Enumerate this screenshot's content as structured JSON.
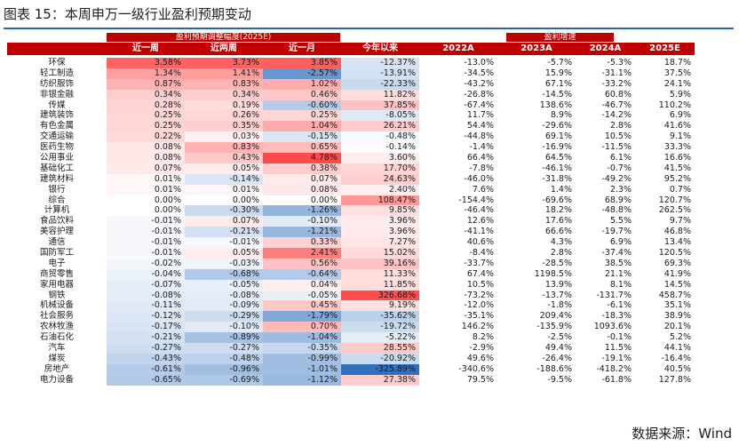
{
  "title": "图表 15：本周申万一级行业盈利预期变动",
  "header": {
    "group_left": "盈利预期调整幅度(2025E)",
    "group_right": "盈利增速",
    "columns": [
      "近一周",
      "近两周",
      "近一月",
      "今年以来",
      "2022A",
      "2023A",
      "2024A",
      "2025E"
    ]
  },
  "rows": [
    {
      "name": "环保",
      "w1": "3.58%",
      "w2": "3.73%",
      "m1": "3.85%",
      "ytd": "-12.37%",
      "y22": "-13.0%",
      "y23": "-5.7%",
      "y24": "-5.3%",
      "y25": "18.7%"
    },
    {
      "name": "轻工制造",
      "w1": "1.34%",
      "w2": "1.41%",
      "m1": "-2.57%",
      "ytd": "-13.91%",
      "y22": "-34.5%",
      "y23": "15.9%",
      "y24": "-31.1%",
      "y25": "37.5%"
    },
    {
      "name": "纺织服饰",
      "w1": "0.87%",
      "w2": "0.83%",
      "m1": "1.02%",
      "ytd": "-22.33%",
      "y22": "-43.2%",
      "y23": "67.1%",
      "y24": "-33.2%",
      "y25": "24.1%"
    },
    {
      "name": "非银金融",
      "w1": "0.34%",
      "w2": "0.34%",
      "m1": "0.46%",
      "ytd": "11.82%",
      "y22": "-26.8%",
      "y23": "-14.5%",
      "y24": "60.8%",
      "y25": "5.9%"
    },
    {
      "name": "传媒",
      "w1": "0.28%",
      "w2": "0.19%",
      "m1": "-0.60%",
      "ytd": "37.85%",
      "y22": "-67.4%",
      "y23": "138.6%",
      "y24": "-46.7%",
      "y25": "110.2%"
    },
    {
      "name": "建筑装饰",
      "w1": "0.25%",
      "w2": "0.26%",
      "m1": "0.25%",
      "ytd": "-8.05%",
      "y22": "11.7%",
      "y23": "8.9%",
      "y24": "-14.2%",
      "y25": "6.9%"
    },
    {
      "name": "有色金属",
      "w1": "0.25%",
      "w2": "0.35%",
      "m1": "1.04%",
      "ytd": "26.21%",
      "y22": "54.4%",
      "y23": "-29.6%",
      "y24": "2.8%",
      "y25": "41.6%"
    },
    {
      "name": "交通运输",
      "w1": "0.22%",
      "w2": "0.03%",
      "m1": "-0.15%",
      "ytd": "-0.48%",
      "y22": "-44.8%",
      "y23": "69.1%",
      "y24": "10.5%",
      "y25": "9.1%"
    },
    {
      "name": "医药生物",
      "w1": "0.08%",
      "w2": "0.83%",
      "m1": "0.65%",
      "ytd": "-0.14%",
      "y22": "-1.4%",
      "y23": "-16.9%",
      "y24": "-11.5%",
      "y25": "33.3%"
    },
    {
      "name": "公用事业",
      "w1": "0.08%",
      "w2": "0.43%",
      "m1": "4.78%",
      "ytd": "3.60%",
      "y22": "66.4%",
      "y23": "64.5%",
      "y24": "6.1%",
      "y25": "16.6%"
    },
    {
      "name": "基础化工",
      "w1": "0.07%",
      "w2": "0.05%",
      "m1": "0.38%",
      "ytd": "17.70%",
      "y22": "-7.8%",
      "y23": "-46.1%",
      "y24": "-0.7%",
      "y25": "41.5%"
    },
    {
      "name": "建筑材料",
      "w1": "0.01%",
      "w2": "-0.14%",
      "m1": "0.07%",
      "ytd": "24.63%",
      "y22": "-46.0%",
      "y23": "-31.8%",
      "y24": "-49.2%",
      "y25": "95.2%"
    },
    {
      "name": "银行",
      "w1": "0.01%",
      "w2": "0.01%",
      "m1": "0.08%",
      "ytd": "2.40%",
      "y22": "7.6%",
      "y23": "1.4%",
      "y24": "2.3%",
      "y25": "0.7%"
    },
    {
      "name": "综合",
      "w1": "0.00%",
      "w2": "0.00%",
      "m1": "0.00%",
      "ytd": "108.47%",
      "y22": "-154.4%",
      "y23": "-69.6%",
      "y24": "68.9%",
      "y25": "120.7%"
    },
    {
      "name": "计算机",
      "w1": "0.00%",
      "w2": "-0.30%",
      "m1": "-1.26%",
      "ytd": "9.85%",
      "y22": "-46.4%",
      "y23": "18.2%",
      "y24": "-48.8%",
      "y25": "262.5%"
    },
    {
      "name": "食品饮料",
      "w1": "-0.01%",
      "w2": "0.07%",
      "m1": "-0.10%",
      "ytd": "3.96%",
      "y22": "12.6%",
      "y23": "17.6%",
      "y24": "5.5%",
      "y25": "9.7%"
    },
    {
      "name": "美容护理",
      "w1": "-0.01%",
      "w2": "-0.21%",
      "m1": "-1.21%",
      "ytd": "3.96%",
      "y22": "-41.1%",
      "y23": "66.6%",
      "y24": "-19.7%",
      "y25": "46.8%"
    },
    {
      "name": "通信",
      "w1": "-0.01%",
      "w2": "-0.01%",
      "m1": "0.33%",
      "ytd": "7.27%",
      "y22": "40.6%",
      "y23": "4.3%",
      "y24": "6.9%",
      "y25": "13.4%"
    },
    {
      "name": "国防军工",
      "w1": "-0.01%",
      "w2": "0.05%",
      "m1": "2.41%",
      "ytd": "15.02%",
      "y22": "-8.4%",
      "y23": "2.8%",
      "y24": "-37.4%",
      "y25": "120.5%"
    },
    {
      "name": "电子",
      "w1": "-0.02%",
      "w2": "-0.03%",
      "m1": "0.56%",
      "ytd": "39.16%",
      "y22": "-33.7%",
      "y23": "-28.5%",
      "y24": "38.5%",
      "y25": "69.3%"
    },
    {
      "name": "商贸零售",
      "w1": "-0.04%",
      "w2": "-0.68%",
      "m1": "-0.64%",
      "ytd": "11.33%",
      "y22": "67.4%",
      "y23": "1198.5%",
      "y24": "21.1%",
      "y25": "41.9%"
    },
    {
      "name": "家用电器",
      "w1": "-0.07%",
      "w2": "-0.05%",
      "m1": "0.04%",
      "ytd": "11.85%",
      "y22": "10.5%",
      "y23": "13.9%",
      "y24": "8.1%",
      "y25": "14.5%"
    },
    {
      "name": "钢铁",
      "w1": "-0.08%",
      "w2": "-0.08%",
      "m1": "-0.05%",
      "ytd": "326.68%",
      "y22": "-73.2%",
      "y23": "-13.7%",
      "y24": "-131.7%",
      "y25": "458.7%"
    },
    {
      "name": "机械设备",
      "w1": "-0.11%",
      "w2": "-0.09%",
      "m1": "0.45%",
      "ytd": "9.19%",
      "y22": "-12.0%",
      "y23": "-1.8%",
      "y24": "-6.1%",
      "y25": "35.1%"
    },
    {
      "name": "社会服务",
      "w1": "-0.12%",
      "w2": "-0.29%",
      "m1": "-1.79%",
      "ytd": "-35.62%",
      "y22": "-35.1%",
      "y23": "209.4%",
      "y24": "-18.3%",
      "y25": "38.9%"
    },
    {
      "name": "农林牧渔",
      "w1": "-0.17%",
      "w2": "-0.10%",
      "m1": "0.70%",
      "ytd": "-19.72%",
      "y22": "146.2%",
      "y23": "-135.9%",
      "y24": "1093.6%",
      "y25": "20.1%"
    },
    {
      "name": "石油石化",
      "w1": "-0.21%",
      "w2": "-0.89%",
      "m1": "-1.04%",
      "ytd": "-5.22%",
      "y22": "8.2%",
      "y23": "-2.5%",
      "y24": "-0.1%",
      "y25": "5.2%"
    },
    {
      "name": "汽车",
      "w1": "-0.27%",
      "w2": "-0.27%",
      "m1": "-0.35%",
      "ytd": "28.55%",
      "y22": "-2.9%",
      "y23": "49.4%",
      "y24": "11.5%",
      "y25": "44.1%"
    },
    {
      "name": "煤炭",
      "w1": "-0.43%",
      "w2": "-0.48%",
      "m1": "-0.99%",
      "ytd": "-20.92%",
      "y22": "49.6%",
      "y23": "-26.4%",
      "y24": "-19.1%",
      "y25": "-16.4%"
    },
    {
      "name": "房地产",
      "w1": "-0.61%",
      "w2": "-0.96%",
      "m1": "-1.01%",
      "ytd": "-325.89%",
      "y22": "-340.6%",
      "y23": "-188.6%",
      "y24": "-418.2%",
      "y25": "40.5%"
    },
    {
      "name": "电力设备",
      "w1": "-0.65%",
      "w2": "-0.69%",
      "m1": "-1.12%",
      "ytd": "27.38%",
      "y22": "79.5%",
      "y23": "-9.5%",
      "y24": "-61.8%",
      "y25": "127.8%"
    }
  ],
  "colors": {
    "header_bg": "#c00000",
    "title_rule": "#2e63a8",
    "positive": "#ff4b4b",
    "negative": "#2f6fbf"
  },
  "source": "数据来源：Wind"
}
